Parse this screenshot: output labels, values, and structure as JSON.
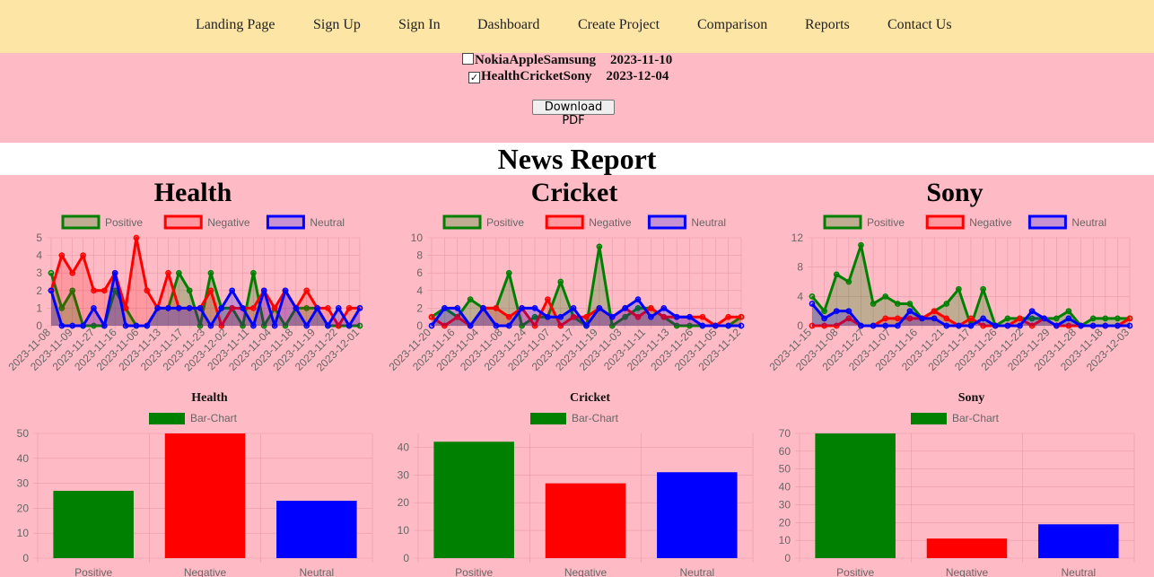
{
  "nav": [
    "Landing Page",
    "Sign Up",
    "Sign In",
    "Dashboard",
    "Create Project",
    "Comparison",
    "Reports",
    "Contact Us"
  ],
  "reports": [
    {
      "name": "NokiaAppleSamsung",
      "date": "2023-11-10",
      "checked": false
    },
    {
      "name": "HealthCricketSony",
      "date": "2023-12-04",
      "checked": true
    }
  ],
  "download_label": "Download PDF",
  "page_title": "News Report",
  "colors": {
    "positive": "#008000",
    "negative": "#ff0000",
    "neutral": "#0000ff",
    "background": "#ffbbc5",
    "navbar": "#fde6a5"
  },
  "panels": [
    {
      "title": "Health",
      "bar_title": "Health"
    },
    {
      "title": "Cricket",
      "bar_title": "Cricket"
    },
    {
      "title": "Sony",
      "bar_title": "Sony"
    }
  ],
  "chart_data": [
    {
      "type": "area",
      "title": "Health",
      "legend": [
        "Positive",
        "Negative",
        "Neutral"
      ],
      "ylim": [
        0,
        5
      ],
      "yticks": [
        0,
        1,
        2,
        3,
        4,
        5
      ],
      "xtick_labels": [
        "2023-11-08",
        "2023-11-09",
        "2023-11-27",
        "2023-11-16",
        "2023-11-06",
        "2023-11-13",
        "2023-11-17",
        "2023-11-23",
        "2023-12-02",
        "2023-11-11",
        "2023-11-04",
        "2023-11-18",
        "2023-11-19",
        "2023-11-22",
        "2023-12-01"
      ],
      "series": [
        {
          "name": "Positive",
          "values": [
            3,
            1,
            2,
            0,
            0,
            0,
            2,
            1,
            0,
            0,
            1,
            1,
            3,
            2,
            0,
            3,
            1,
            1,
            0,
            3,
            0,
            1,
            0,
            1,
            1,
            1,
            0,
            0,
            0,
            0
          ]
        },
        {
          "name": "Negative",
          "values": [
            2,
            4,
            3,
            4,
            2,
            2,
            3,
            1,
            5,
            2,
            1,
            3,
            1,
            1,
            1,
            2,
            0,
            1,
            1,
            1,
            2,
            1,
            2,
            1,
            2,
            1,
            1,
            0,
            1,
            1
          ]
        },
        {
          "name": "Neutral",
          "values": [
            2,
            0,
            0,
            0,
            1,
            0,
            3,
            0,
            0,
            0,
            1,
            1,
            1,
            1,
            1,
            0,
            1,
            2,
            1,
            0,
            2,
            0,
            2,
            1,
            0,
            1,
            0,
            1,
            0,
            1
          ]
        }
      ]
    },
    {
      "type": "area",
      "title": "Cricket",
      "legend": [
        "Positive",
        "Negative",
        "Neutral"
      ],
      "ylim": [
        0,
        10
      ],
      "yticks": [
        0,
        2,
        4,
        6,
        8,
        10
      ],
      "xtick_labels": [
        "2023-11-20",
        "2023-11-16",
        "2023-11-04",
        "2023-11-08",
        "2023-11-24",
        "2023-11-07",
        "2023-11-17",
        "2023-11-19",
        "2023-11-03",
        "2023-11-11",
        "2023-11-13",
        "2023-11-26",
        "2023-11-05",
        "2023-11-12"
      ],
      "series": [
        {
          "name": "Positive",
          "values": [
            1,
            2,
            1,
            3,
            2,
            2,
            6,
            0,
            1,
            1,
            5,
            1,
            0,
            9,
            0,
            1,
            2,
            2,
            1,
            0,
            0,
            0,
            0,
            0,
            1
          ]
        },
        {
          "name": "Negative",
          "values": [
            1,
            0,
            1,
            0,
            2,
            2,
            1,
            2,
            0,
            3,
            0,
            1,
            1,
            2,
            1,
            2,
            1,
            2,
            1,
            1,
            1,
            1,
            0,
            1,
            1
          ]
        },
        {
          "name": "Neutral",
          "values": [
            0,
            2,
            2,
            0,
            2,
            0,
            0,
            2,
            2,
            1,
            1,
            2,
            0,
            2,
            1,
            2,
            3,
            1,
            2,
            1,
            1,
            0,
            0,
            0,
            0
          ]
        }
      ]
    },
    {
      "type": "area",
      "title": "Sony",
      "legend": [
        "Positive",
        "Negative",
        "Neutral"
      ],
      "ylim": [
        0,
        12
      ],
      "yticks": [
        0,
        4,
        8,
        12
      ],
      "xtick_labels": [
        "2023-11-15",
        "2023-11-08",
        "2023-11-27",
        "2023-11-07",
        "2023-11-16",
        "2023-11-21",
        "2023-11-17",
        "2023-11-26",
        "2023-11-22",
        "2023-11-29",
        "2023-11-28",
        "2023-11-18",
        "2023-12-03"
      ],
      "series": [
        {
          "name": "Positive",
          "values": [
            4,
            2,
            7,
            6,
            11,
            3,
            4,
            3,
            3,
            1,
            2,
            3,
            5,
            0,
            5,
            0,
            1,
            1,
            1,
            1,
            1,
            2,
            0,
            1,
            1,
            1,
            1
          ]
        },
        {
          "name": "Negative",
          "values": [
            0,
            0,
            0,
            1,
            0,
            0,
            1,
            1,
            1,
            1,
            2,
            1,
            0,
            1,
            0,
            0,
            0,
            1,
            0,
            1,
            0,
            0,
            0,
            0,
            0,
            0,
            1
          ]
        },
        {
          "name": "Neutral",
          "values": [
            3,
            1,
            2,
            2,
            0,
            0,
            0,
            0,
            2,
            1,
            1,
            0,
            0,
            0,
            1,
            0,
            0,
            0,
            2,
            1,
            0,
            1,
            0,
            0,
            0,
            0,
            0
          ]
        }
      ]
    },
    {
      "type": "bar",
      "title": "Health",
      "legend": [
        "Bar-Chart"
      ],
      "categories": [
        "Positive",
        "Negative",
        "Neutral"
      ],
      "values": [
        27,
        50,
        23
      ],
      "ylim": [
        0,
        50
      ],
      "yticks": [
        0,
        10,
        20,
        30,
        40,
        50
      ]
    },
    {
      "type": "bar",
      "title": "Cricket",
      "legend": [
        "Bar-Chart"
      ],
      "categories": [
        "Positive",
        "Negative",
        "Neutral"
      ],
      "values": [
        42,
        27,
        31
      ],
      "ylim": [
        0,
        45
      ],
      "yticks": [
        0,
        10,
        20,
        30,
        40
      ]
    },
    {
      "type": "bar",
      "title": "Sony",
      "legend": [
        "Bar-Chart"
      ],
      "categories": [
        "Positive",
        "Negative",
        "Neutral"
      ],
      "values": [
        70,
        11,
        19
      ],
      "ylim": [
        0,
        70
      ],
      "yticks": [
        0,
        10,
        20,
        30,
        40,
        50,
        60,
        70
      ]
    }
  ]
}
